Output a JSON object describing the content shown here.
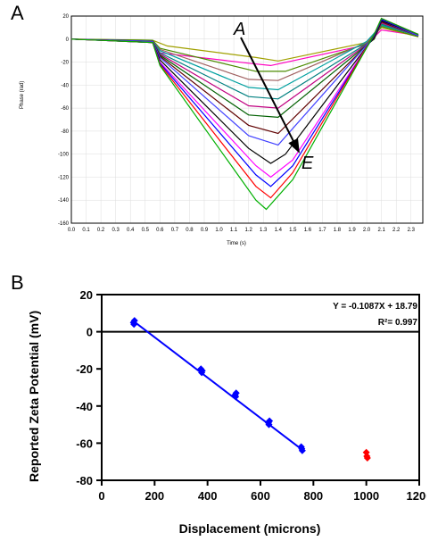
{
  "panelA": {
    "label": "A",
    "type": "line",
    "title": "",
    "xlabel": "Time (s)",
    "ylabel": "Phase (rad)",
    "xlim": [
      0.0,
      2.38
    ],
    "ylim": [
      -160,
      20
    ],
    "xtick_step": 0.1,
    "ytick_step": 20,
    "background_color": "#ffffff",
    "grid_color": "#dcdcdc",
    "axis_color": "#000000",
    "line_width": 1.2,
    "arrow": {
      "labelStart": "A",
      "labelEnd": "E",
      "color": "#000000"
    },
    "series": [
      {
        "color": "#ff00c0",
        "data": [
          [
            0,
            0
          ],
          [
            0.55,
            -2
          ],
          [
            0.6,
            -12
          ],
          [
            1.2,
            -21
          ],
          [
            1.35,
            -23
          ],
          [
            2.0,
            -5
          ],
          [
            2.1,
            8
          ],
          [
            2.35,
            3
          ]
        ]
      },
      {
        "color": "#a0a000",
        "data": [
          [
            0,
            0
          ],
          [
            0.55,
            -1
          ],
          [
            0.65,
            -6
          ],
          [
            1.25,
            -16
          ],
          [
            1.4,
            -19
          ],
          [
            2.0,
            -3
          ],
          [
            2.1,
            10
          ],
          [
            2.35,
            2
          ]
        ]
      },
      {
        "color": "#4b8b00",
        "data": [
          [
            0,
            0
          ],
          [
            0.55,
            -1
          ],
          [
            0.6,
            -8
          ],
          [
            1.25,
            -28
          ],
          [
            1.45,
            -28
          ],
          [
            2.0,
            -4
          ],
          [
            2.1,
            11
          ],
          [
            2.35,
            2
          ]
        ]
      },
      {
        "color": "#a06060",
        "data": [
          [
            0,
            0
          ],
          [
            0.55,
            -2
          ],
          [
            0.6,
            -9
          ],
          [
            1.2,
            -35
          ],
          [
            1.4,
            -36
          ],
          [
            2.0,
            -3
          ],
          [
            2.1,
            12
          ],
          [
            2.35,
            3
          ]
        ]
      },
      {
        "color": "#00a0a0",
        "data": [
          [
            0,
            0
          ],
          [
            0.55,
            -2
          ],
          [
            0.6,
            -10
          ],
          [
            1.2,
            -42
          ],
          [
            1.4,
            -44
          ],
          [
            2.0,
            -2
          ],
          [
            2.1,
            12
          ],
          [
            2.35,
            3
          ]
        ]
      },
      {
        "color": "#008080",
        "data": [
          [
            0,
            0
          ],
          [
            0.55,
            -2
          ],
          [
            0.6,
            -12
          ],
          [
            1.2,
            -50
          ],
          [
            1.4,
            -52
          ],
          [
            2.05,
            0
          ],
          [
            2.1,
            13
          ],
          [
            2.35,
            3
          ]
        ]
      },
      {
        "color": "#c00080",
        "data": [
          [
            0,
            0
          ],
          [
            0.55,
            -2
          ],
          [
            0.6,
            -13
          ],
          [
            1.2,
            -58
          ],
          [
            1.4,
            -60
          ],
          [
            2.05,
            0
          ],
          [
            2.1,
            14
          ],
          [
            2.35,
            3
          ]
        ]
      },
      {
        "color": "#006000",
        "data": [
          [
            0,
            0
          ],
          [
            0.55,
            -2
          ],
          [
            0.6,
            -14
          ],
          [
            1.2,
            -66
          ],
          [
            1.4,
            -68
          ],
          [
            2.05,
            0
          ],
          [
            2.1,
            15
          ],
          [
            2.35,
            3
          ]
        ]
      },
      {
        "color": "#600000",
        "data": [
          [
            0,
            0
          ],
          [
            0.55,
            -2
          ],
          [
            0.6,
            -15
          ],
          [
            1.2,
            -75
          ],
          [
            1.4,
            -82
          ],
          [
            2.05,
            1
          ],
          [
            2.1,
            15
          ],
          [
            2.35,
            3
          ]
        ]
      },
      {
        "color": "#4040ff",
        "data": [
          [
            0,
            0
          ],
          [
            0.55,
            -2
          ],
          [
            0.6,
            -16
          ],
          [
            1.2,
            -84
          ],
          [
            1.4,
            -92
          ],
          [
            2.05,
            2
          ],
          [
            2.1,
            16
          ],
          [
            2.35,
            3
          ]
        ]
      },
      {
        "color": "#000000",
        "data": [
          [
            0,
            0
          ],
          [
            0.55,
            -3
          ],
          [
            0.6,
            -18
          ],
          [
            1.2,
            -95
          ],
          [
            1.35,
            -108
          ],
          [
            1.45,
            -100
          ],
          [
            2.05,
            2
          ],
          [
            2.1,
            16
          ],
          [
            2.35,
            4
          ]
        ]
      },
      {
        "color": "#ff00ff",
        "data": [
          [
            0,
            0
          ],
          [
            0.55,
            -3
          ],
          [
            0.6,
            -20
          ],
          [
            1.25,
            -110
          ],
          [
            1.35,
            -120
          ],
          [
            1.5,
            -105
          ],
          [
            2.05,
            3
          ],
          [
            2.1,
            17
          ],
          [
            2.35,
            4
          ]
        ]
      },
      {
        "color": "#0000ff",
        "data": [
          [
            0,
            0
          ],
          [
            0.55,
            -3
          ],
          [
            0.6,
            -21
          ],
          [
            1.25,
            -118
          ],
          [
            1.35,
            -128
          ],
          [
            1.5,
            -110
          ],
          [
            2.05,
            3
          ],
          [
            2.1,
            17
          ],
          [
            2.35,
            4
          ]
        ]
      },
      {
        "color": "#ff0000",
        "data": [
          [
            0,
            0
          ],
          [
            0.55,
            -3
          ],
          [
            0.6,
            -22
          ],
          [
            1.25,
            -128
          ],
          [
            1.35,
            -138
          ],
          [
            1.5,
            -116
          ],
          [
            2.05,
            4
          ],
          [
            2.1,
            18
          ],
          [
            2.35,
            4
          ]
        ]
      },
      {
        "color": "#00b000",
        "data": [
          [
            0,
            0
          ],
          [
            0.55,
            -3
          ],
          [
            0.6,
            -23
          ],
          [
            1.25,
            -140
          ],
          [
            1.32,
            -148
          ],
          [
            1.5,
            -122
          ],
          [
            2.05,
            4
          ],
          [
            2.1,
            18
          ],
          [
            2.35,
            4
          ]
        ]
      }
    ]
  },
  "panelB": {
    "label": "B",
    "type": "scatter-line",
    "xlabel": "Displacement (microns)",
    "ylabel": "Reported Zeta Potential (mV)",
    "xlim": [
      0,
      1200
    ],
    "ylim": [
      -80,
      20
    ],
    "xtick_step": 200,
    "ytick_step": 20,
    "background_color": "#ffffff",
    "axis_color": "#000000",
    "axis_width": 2,
    "fit": {
      "equation": "Y = -0.1087X + 18.79",
      "r2_label": "R²= 0.997",
      "slope": -0.1087,
      "intercept": 18.79,
      "line_color": "#0000ff",
      "line_width": 2,
      "x_range": [
        120,
        760
      ]
    },
    "points_fit": {
      "color": "#0000ff",
      "marker": "diamond",
      "size": 8,
      "data": [
        [
          120,
          5
        ],
        [
          122,
          4
        ],
        [
          124,
          6
        ],
        [
          375,
          -20
        ],
        [
          378,
          -22
        ],
        [
          380,
          -21
        ],
        [
          504,
          -34
        ],
        [
          506,
          -35
        ],
        [
          508,
          -33
        ],
        [
          630,
          -49
        ],
        [
          632,
          -50
        ],
        [
          634,
          -48
        ],
        [
          754,
          -62
        ],
        [
          756,
          -63
        ],
        [
          758,
          -64
        ]
      ]
    },
    "points_outlier": {
      "color": "#ff0000",
      "marker": "diamond",
      "size": 8,
      "data": [
        [
          1000,
          -65
        ],
        [
          1002,
          -67
        ],
        [
          1004,
          -68
        ]
      ]
    },
    "label_fontsize": 14,
    "tick_fontsize": 13,
    "eq_fontsize": 10
  }
}
